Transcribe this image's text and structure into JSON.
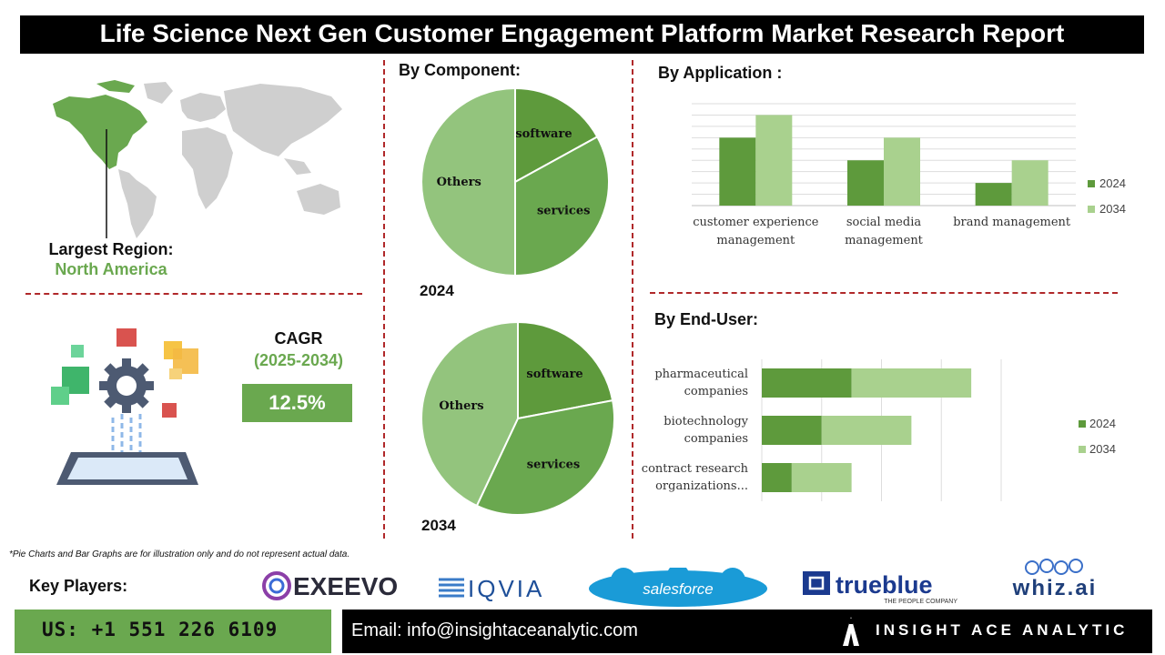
{
  "title": "Life Science Next Gen Customer Engagement Platform Market Research Report",
  "region": {
    "label": "Largest Region:",
    "value": "North America"
  },
  "cagr": {
    "label": "CAGR",
    "period": "(2025-2034)",
    "value": "12.5%"
  },
  "component": {
    "title": "By Component:",
    "year_top": "2024",
    "year_bottom": "2034"
  },
  "application": {
    "title": "By  Application :"
  },
  "enduser": {
    "title": "By End-User:"
  },
  "footnote": "*Pie Charts and Bar Graphs are for illustration only and do not represent actual data.",
  "key_players": {
    "label": "Key Players:",
    "logos": [
      "EXEEVO",
      "IQVIA",
      "salesforce",
      "trueblue",
      "THE PEOPLE COMPANY",
      "whiz.ai"
    ]
  },
  "contact": {
    "phone": "US: +1 551 226 6109",
    "email": "Email: info@insightaceanalytic.com",
    "brand": "INSIGHT ACE ANALYTIC"
  },
  "colors": {
    "dark_green": "#5e9a3c",
    "mid_green": "#6aa84f",
    "light_green": "#93c47d",
    "pale_green": "#a9d18e",
    "accent_red": "#b0282a"
  },
  "icons": [
    "world-map-icon",
    "gear-icon",
    "tablet-icon",
    "brand-logo-icon"
  ],
  "chart_data": [
    {
      "type": "pie",
      "title": "2024",
      "slices": [
        {
          "label": "software",
          "value": 17
        },
        {
          "label": "services",
          "value": 33
        },
        {
          "label": "Others",
          "value": 50
        }
      ]
    },
    {
      "type": "pie",
      "title": "2034",
      "slices": [
        {
          "label": "software",
          "value": 22
        },
        {
          "label": "services",
          "value": 35
        },
        {
          "label": "Others",
          "value": 43
        }
      ]
    },
    {
      "type": "bar",
      "title": "By  Application :",
      "categories": [
        [
          "customer experience",
          "management"
        ],
        [
          "social media",
          "management"
        ],
        [
          "brand management"
        ]
      ],
      "series": [
        {
          "name": "2024",
          "values": [
            3,
            2,
            1
          ]
        },
        {
          "name": "2034",
          "values": [
            4,
            3,
            2
          ]
        }
      ],
      "ylim": [
        0,
        4.5
      ],
      "grid": true,
      "legend": "right"
    },
    {
      "type": "bar",
      "orientation": "horizontal",
      "stacked": true,
      "title": "By End-User:",
      "categories": [
        [
          "pharmaceutical",
          "companies"
        ],
        [
          "biotechnology",
          "companies"
        ],
        [
          "contract research",
          "organizations..."
        ]
      ],
      "series": [
        {
          "name": "2024",
          "values": [
            3,
            2,
            1
          ]
        },
        {
          "name": "2034",
          "values": [
            4,
            3,
            2
          ]
        }
      ],
      "xlim": [
        0,
        8
      ],
      "grid": true,
      "legend": "right"
    }
  ]
}
